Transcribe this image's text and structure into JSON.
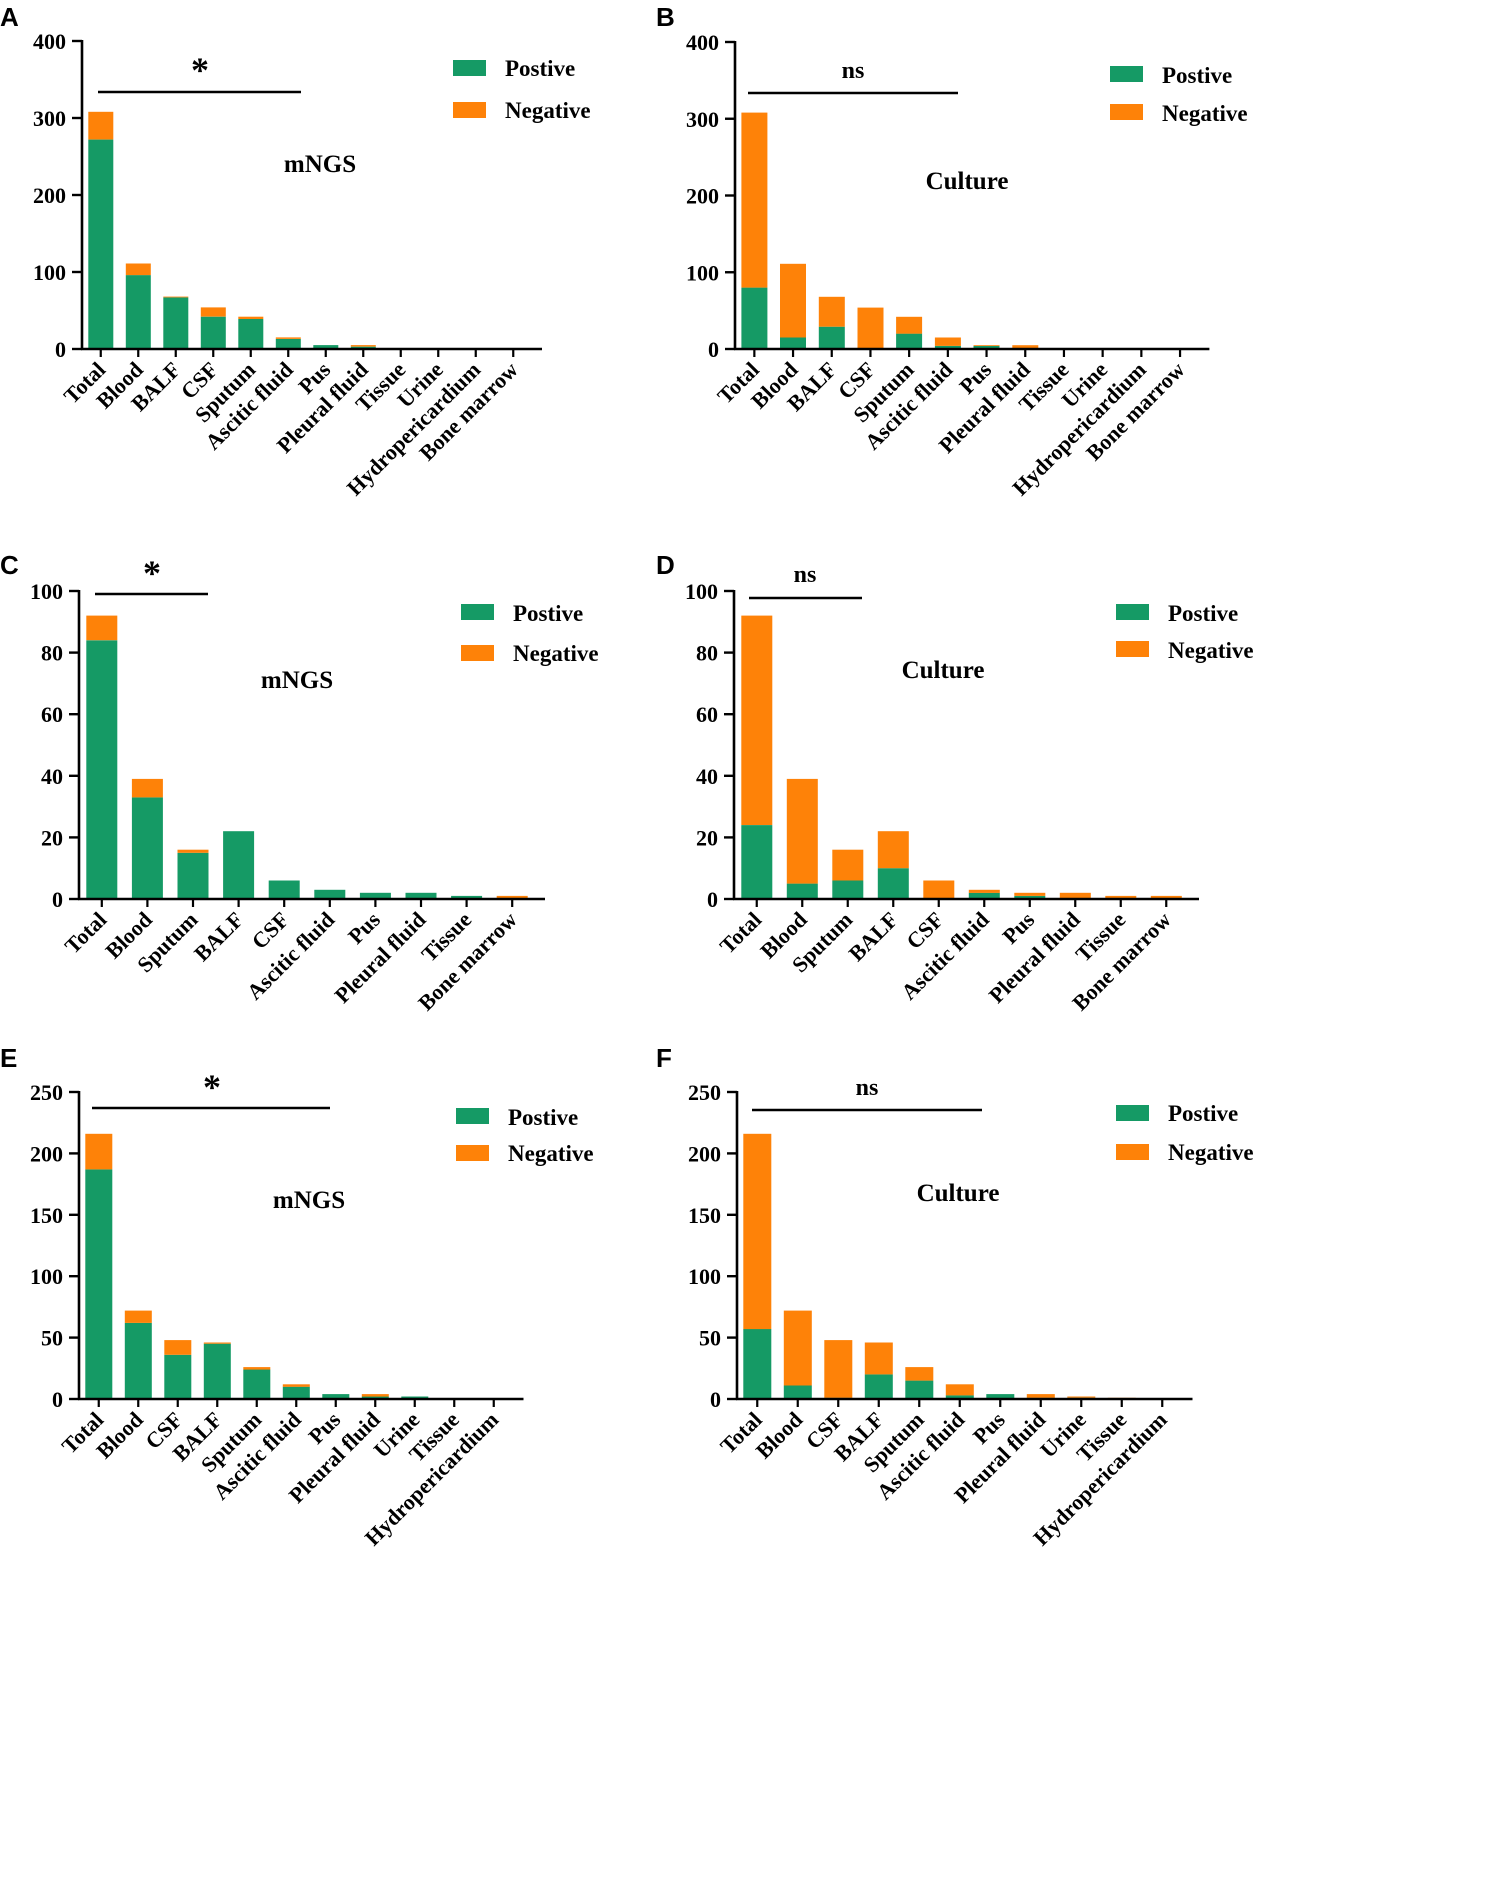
{
  "figure": {
    "colors": {
      "positive": "#159a65",
      "negative": "#fe8208"
    },
    "legend": {
      "positive": "Postive",
      "negative": "Negative"
    }
  },
  "chart_data": [
    {
      "panel": "A",
      "type": "bar",
      "stacked": true,
      "title": "mNGS",
      "ylim": [
        0,
        400
      ],
      "yticks": [
        0,
        100,
        200,
        300,
        400
      ],
      "categories": [
        "Total",
        "Blood",
        "BALF",
        "CSF",
        "Sputum",
        "Ascitic fluid",
        "Pus",
        "Pleural fluid",
        "Tissue",
        "Urine",
        "Hydropericardium",
        "Bone marrow"
      ],
      "series": [
        {
          "name": "Postive",
          "values": [
            272,
            96,
            67,
            42,
            39,
            13,
            5,
            3,
            0,
            0,
            0,
            0
          ]
        },
        {
          "name": "Negative",
          "values": [
            36,
            15,
            1,
            12,
            3,
            2,
            0,
            2,
            0,
            0,
            0,
            0
          ]
        }
      ],
      "significance": {
        "label": "*",
        "span": [
          "Total",
          "Ascitic fluid"
        ]
      }
    },
    {
      "panel": "B",
      "type": "bar",
      "stacked": true,
      "title": "Culture",
      "ylim": [
        0,
        400
      ],
      "yticks": [
        0,
        100,
        200,
        300,
        400
      ],
      "categories": [
        "Total",
        "Blood",
        "BALF",
        "CSF",
        "Sputum",
        "Ascitic fluid",
        "Pus",
        "Pleural fluid",
        "Tissue",
        "Urine",
        "Hydropericardium",
        "Bone marrow"
      ],
      "series": [
        {
          "name": "Postive",
          "values": [
            80,
            15,
            29,
            0,
            20,
            4,
            4,
            1,
            0,
            0,
            0,
            0
          ]
        },
        {
          "name": "Negative",
          "values": [
            228,
            96,
            39,
            54,
            22,
            11,
            1,
            4,
            0,
            0,
            0,
            0
          ]
        }
      ],
      "significance": {
        "label": "ns",
        "span": [
          "Total",
          "Pus"
        ]
      }
    },
    {
      "panel": "C",
      "type": "bar",
      "stacked": true,
      "title": "mNGS",
      "ylim": [
        0,
        100
      ],
      "yticks": [
        0,
        20,
        40,
        60,
        80,
        100
      ],
      "categories": [
        "Total",
        "Blood",
        "Sputum",
        "BALF",
        "CSF",
        "Ascitic fluid",
        "Pus",
        "Pleural fluid",
        "Tissue",
        "Bone marrow"
      ],
      "series": [
        {
          "name": "Postive",
          "values": [
            84,
            33,
            15,
            22,
            6,
            3,
            2,
            2,
            1,
            0
          ]
        },
        {
          "name": "Negative",
          "values": [
            8,
            6,
            1,
            0,
            0,
            0,
            0,
            0,
            0,
            1
          ]
        }
      ],
      "significance": {
        "label": "*",
        "span": [
          "Total",
          "BALF"
        ]
      }
    },
    {
      "panel": "D",
      "type": "bar",
      "stacked": true,
      "title": "Culture",
      "ylim": [
        0,
        100
      ],
      "yticks": [
        0,
        20,
        40,
        60,
        80,
        100
      ],
      "categories": [
        "Total",
        "Blood",
        "Sputum",
        "BALF",
        "CSF",
        "Ascitic fluid",
        "Pus",
        "Pleural fluid",
        "Tissue",
        "Bone marrow"
      ],
      "series": [
        {
          "name": "Postive",
          "values": [
            24,
            5,
            6,
            10,
            0,
            2,
            1,
            0,
            0,
            0
          ]
        },
        {
          "name": "Negative",
          "values": [
            68,
            34,
            10,
            12,
            6,
            1,
            1,
            2,
            1,
            1
          ]
        }
      ],
      "significance": {
        "label": "ns",
        "span": [
          "Total",
          "BALF"
        ]
      }
    },
    {
      "panel": "E",
      "type": "bar",
      "stacked": true,
      "title": "mNGS",
      "ylim": [
        0,
        250
      ],
      "yticks": [
        0,
        50,
        100,
        150,
        200,
        250
      ],
      "categories": [
        "Total",
        "Blood",
        "CSF",
        "BALF",
        "Sputum",
        "Ascitic fluid",
        "Pus",
        "Pleural fluid",
        "Urine",
        "Tissue",
        "Hydropericardium"
      ],
      "series": [
        {
          "name": "Postive",
          "values": [
            187,
            62,
            36,
            45,
            24,
            10,
            4,
            2,
            2,
            0,
            0
          ]
        },
        {
          "name": "Negative",
          "values": [
            29,
            10,
            12,
            1,
            2,
            2,
            0,
            2,
            0,
            0,
            0
          ]
        }
      ],
      "significance": {
        "label": "*",
        "span": [
          "Total",
          "Pus"
        ]
      }
    },
    {
      "panel": "F",
      "type": "bar",
      "stacked": true,
      "title": "Culture",
      "ylim": [
        0,
        250
      ],
      "yticks": [
        0,
        50,
        100,
        150,
        200,
        250
      ],
      "categories": [
        "Total",
        "Blood",
        "CSF",
        "BALF",
        "Sputum",
        "Ascitic fluid",
        "Pus",
        "Pleural fluid",
        "Urine",
        "Tissue",
        "Hydropericardium"
      ],
      "series": [
        {
          "name": "Postive",
          "values": [
            57,
            11,
            1,
            20,
            15,
            3,
            4,
            1,
            1,
            0,
            0
          ]
        },
        {
          "name": "Negative",
          "values": [
            159,
            61,
            47,
            26,
            11,
            9,
            0,
            3,
            1,
            1,
            0
          ]
        }
      ],
      "significance": {
        "label": "ns",
        "span": [
          "Total",
          "Pus"
        ]
      }
    }
  ]
}
